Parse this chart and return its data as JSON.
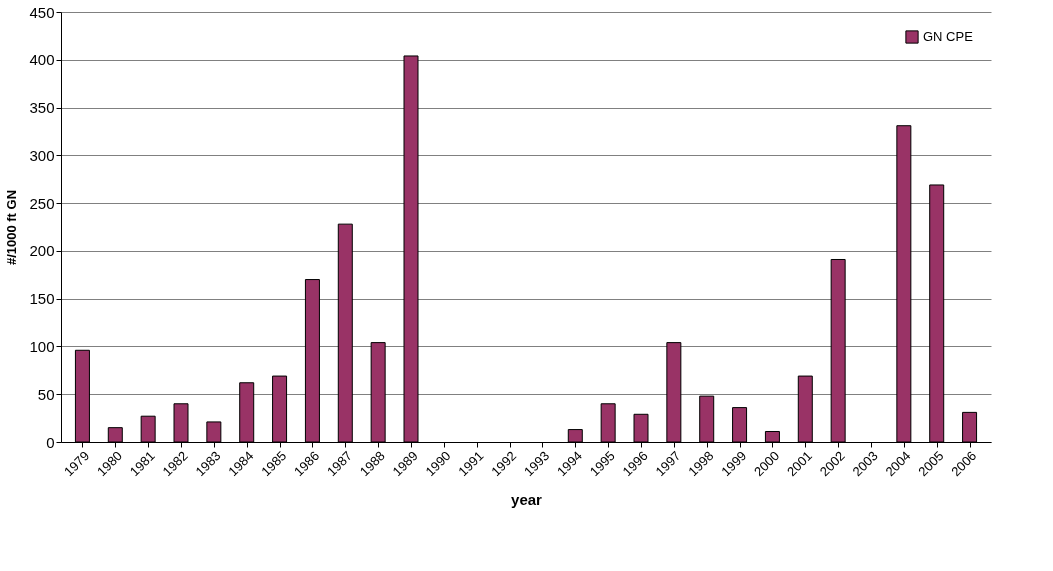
{
  "chart_data": {
    "type": "bar",
    "xlabel": "year",
    "ylabel": "#/1000 ft GN",
    "categories": [
      "1979",
      "1980",
      "1981",
      "1982",
      "1983",
      "1984",
      "1985",
      "1986",
      "1987",
      "1988",
      "1989",
      "1990",
      "1991",
      "1992",
      "1993",
      "1994",
      "1995",
      "1996",
      "1997",
      "1998",
      "1999",
      "2000",
      "2001",
      "2002",
      "2003",
      "2004",
      "2005",
      "2006"
    ],
    "series": [
      {
        "name": "GN CPE",
        "color": "#993366",
        "values": [
          96,
          15,
          27,
          40,
          21,
          62,
          69,
          170,
          228,
          104,
          404,
          null,
          null,
          null,
          null,
          13,
          40,
          29,
          104,
          48,
          36,
          11,
          69,
          191,
          null,
          331,
          269,
          31
        ]
      }
    ],
    "ylim": [
      0,
      450
    ],
    "yticks": [
      0,
      50,
      100,
      150,
      200,
      250,
      300,
      350,
      400,
      450
    ],
    "grid": "y",
    "legend": "top right"
  }
}
